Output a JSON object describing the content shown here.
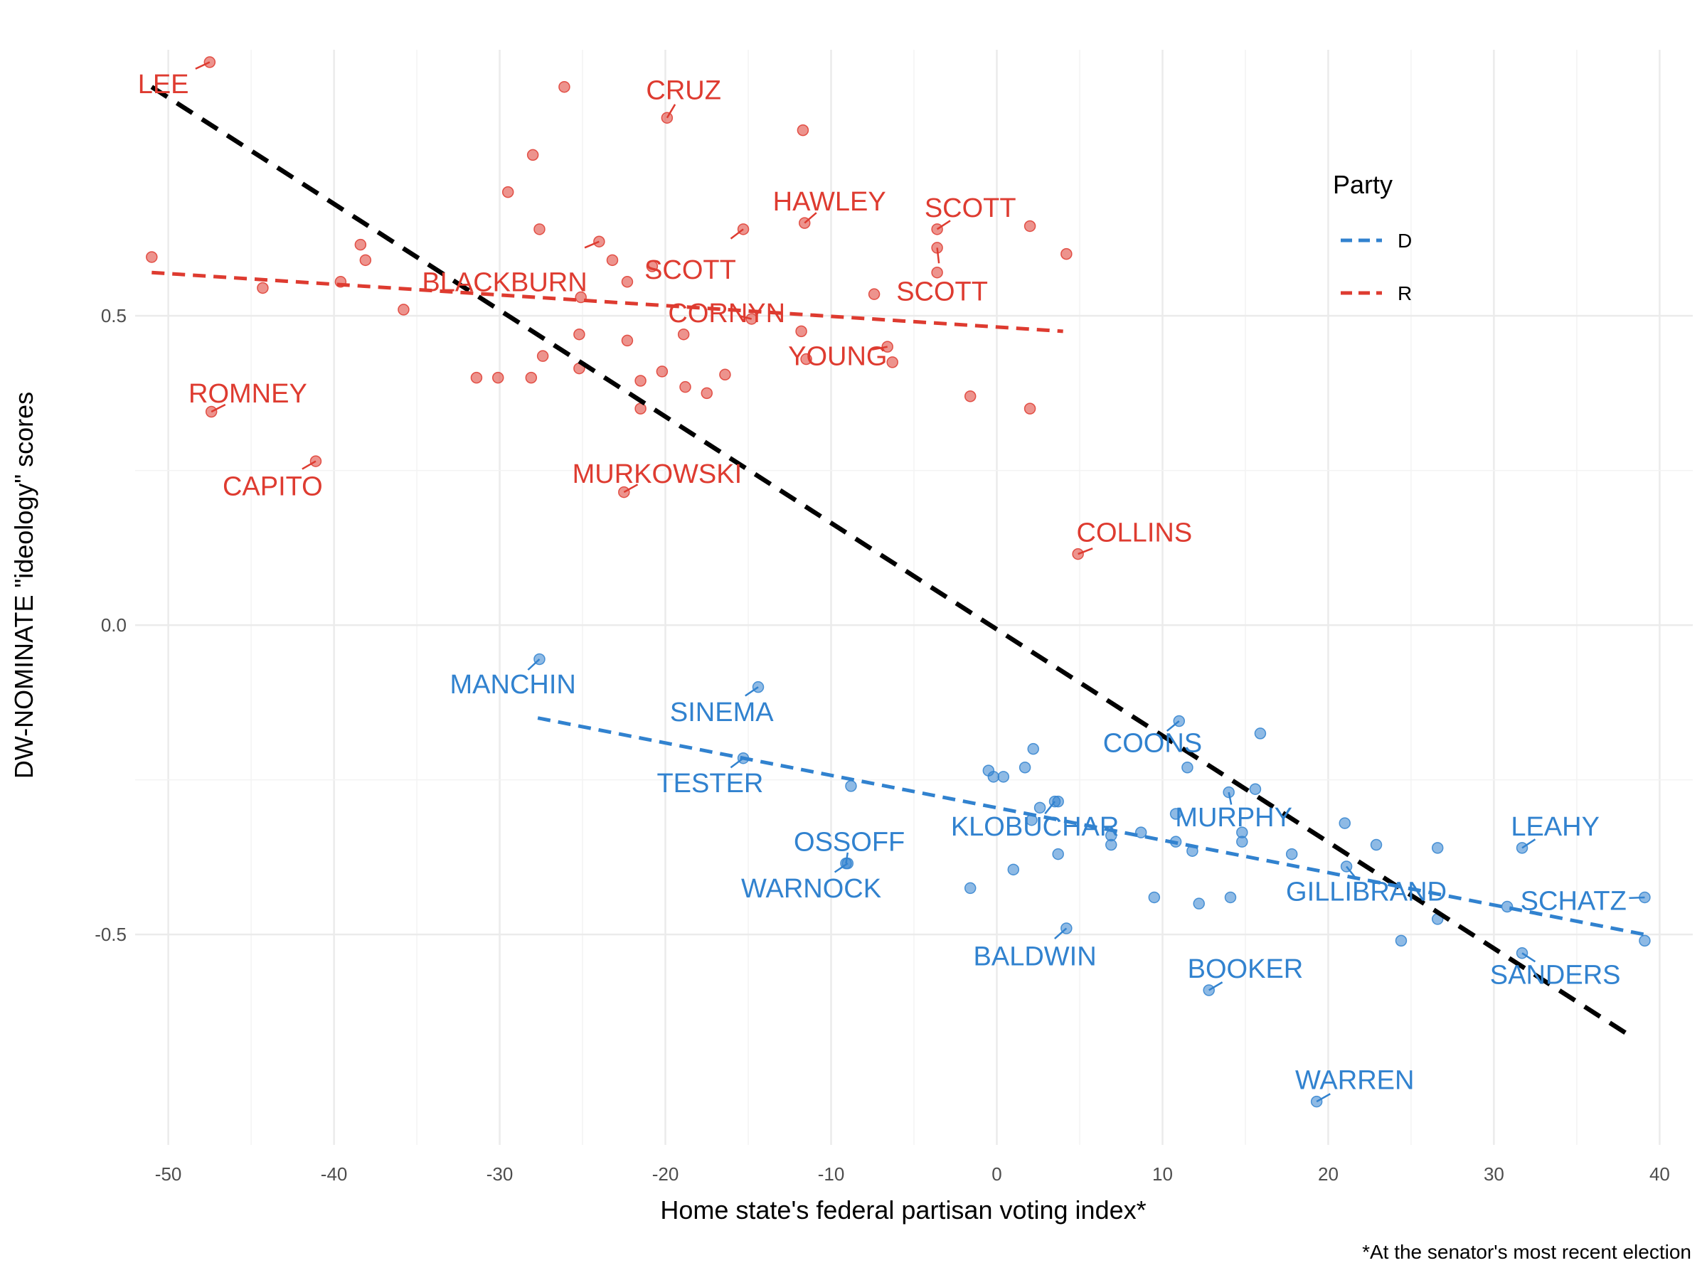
{
  "chart_data": {
    "type": "scatter",
    "xlabel": "Home state's federal partisan voting index*",
    "ylabel": "DW-NOMINATE \"ideology\" scores",
    "caption": "*At the senator's most recent election",
    "xlim": [
      -52,
      42
    ],
    "ylim": [
      -0.84,
      0.93
    ],
    "x_ticks": [
      -50,
      -40,
      -30,
      -20,
      -10,
      0,
      10,
      20,
      30,
      40
    ],
    "y_ticks": [
      -0.5,
      0.0,
      0.5
    ],
    "x_tick_labels": [
      "-50",
      "-40",
      "-30",
      "-20",
      "-10",
      "0",
      "10",
      "20",
      "30",
      "40"
    ],
    "y_tick_labels": [
      "-0.5",
      "0.0",
      "0.5"
    ],
    "grid": true,
    "legend": {
      "title": "Party",
      "placement": "top-right",
      "entries": [
        {
          "key": "D",
          "label": "D",
          "color": "#3182cf"
        },
        {
          "key": "R",
          "label": "R",
          "color": "#de3b30"
        }
      ]
    },
    "colors": {
      "D": "#3182cf",
      "R": "#de3b30",
      "overall": "#000000"
    },
    "fit_lines": [
      {
        "group": "overall",
        "x": [
          -51,
          38
        ],
        "y": [
          0.87,
          -0.66
        ]
      },
      {
        "group": "R",
        "x": [
          -51,
          4
        ],
        "y": [
          0.57,
          0.475
        ]
      },
      {
        "group": "D",
        "x": [
          -27.7,
          39.1
        ],
        "y": [
          -0.15,
          -0.5
        ]
      }
    ],
    "points": {
      "R": [
        {
          "x": -47.5,
          "y": 0.91
        },
        {
          "x": -26.1,
          "y": 0.87
        },
        {
          "x": -19.9,
          "y": 0.82
        },
        {
          "x": -11.7,
          "y": 0.8
        },
        {
          "x": -28.0,
          "y": 0.76
        },
        {
          "x": -29.5,
          "y": 0.7
        },
        {
          "x": -27.6,
          "y": 0.64
        },
        {
          "x": -15.3,
          "y": 0.64
        },
        {
          "x": -11.6,
          "y": 0.65
        },
        {
          "x": -3.6,
          "y": 0.64
        },
        {
          "x": 2.0,
          "y": 0.645
        },
        {
          "x": -38.4,
          "y": 0.615
        },
        {
          "x": -24.0,
          "y": 0.62
        },
        {
          "x": -3.6,
          "y": 0.61
        },
        {
          "x": -51.0,
          "y": 0.595
        },
        {
          "x": -38.1,
          "y": 0.59
        },
        {
          "x": -23.2,
          "y": 0.59
        },
        {
          "x": -20.8,
          "y": 0.58
        },
        {
          "x": 4.2,
          "y": 0.6
        },
        {
          "x": -3.6,
          "y": 0.57
        },
        {
          "x": -39.6,
          "y": 0.555
        },
        {
          "x": -44.3,
          "y": 0.545
        },
        {
          "x": -22.3,
          "y": 0.555
        },
        {
          "x": -7.4,
          "y": 0.535
        },
        {
          "x": -25.1,
          "y": 0.53
        },
        {
          "x": -35.8,
          "y": 0.51
        },
        {
          "x": -14.8,
          "y": 0.495
        },
        {
          "x": -25.2,
          "y": 0.47
        },
        {
          "x": -11.8,
          "y": 0.475
        },
        {
          "x": -18.9,
          "y": 0.47
        },
        {
          "x": -22.3,
          "y": 0.46
        },
        {
          "x": -6.6,
          "y": 0.45
        },
        {
          "x": -27.4,
          "y": 0.435
        },
        {
          "x": -6.3,
          "y": 0.425
        },
        {
          "x": -11.5,
          "y": 0.43
        },
        {
          "x": -25.2,
          "y": 0.415
        },
        {
          "x": -20.2,
          "y": 0.41
        },
        {
          "x": -16.4,
          "y": 0.405
        },
        {
          "x": -31.4,
          "y": 0.4
        },
        {
          "x": -30.1,
          "y": 0.4
        },
        {
          "x": -28.1,
          "y": 0.4
        },
        {
          "x": -21.5,
          "y": 0.395
        },
        {
          "x": -18.8,
          "y": 0.385
        },
        {
          "x": -17.5,
          "y": 0.375
        },
        {
          "x": -1.6,
          "y": 0.37
        },
        {
          "x": -21.5,
          "y": 0.35
        },
        {
          "x": 2.0,
          "y": 0.35
        },
        {
          "x": -47.4,
          "y": 0.345
        },
        {
          "x": -41.1,
          "y": 0.265
        },
        {
          "x": -22.5,
          "y": 0.215
        },
        {
          "x": 4.9,
          "y": 0.115
        }
      ],
      "D": [
        {
          "x": -27.6,
          "y": -0.055
        },
        {
          "x": -14.4,
          "y": -0.1
        },
        {
          "x": 11.0,
          "y": -0.155
        },
        {
          "x": 15.9,
          "y": -0.175
        },
        {
          "x": 2.2,
          "y": -0.2
        },
        {
          "x": -15.3,
          "y": -0.215
        },
        {
          "x": 1.7,
          "y": -0.23
        },
        {
          "x": 11.5,
          "y": -0.23
        },
        {
          "x": -0.5,
          "y": -0.235
        },
        {
          "x": 0.4,
          "y": -0.245
        },
        {
          "x": -0.2,
          "y": -0.245
        },
        {
          "x": -8.8,
          "y": -0.26
        },
        {
          "x": 14.0,
          "y": -0.27
        },
        {
          "x": 15.6,
          "y": -0.265
        },
        {
          "x": 3.5,
          "y": -0.285
        },
        {
          "x": 3.7,
          "y": -0.285
        },
        {
          "x": 2.6,
          "y": -0.295
        },
        {
          "x": 10.8,
          "y": -0.305
        },
        {
          "x": 2.1,
          "y": -0.315
        },
        {
          "x": 21.0,
          "y": -0.32
        },
        {
          "x": 14.8,
          "y": -0.335
        },
        {
          "x": 6.9,
          "y": -0.34
        },
        {
          "x": 8.7,
          "y": -0.335
        },
        {
          "x": 14.8,
          "y": -0.35
        },
        {
          "x": 10.8,
          "y": -0.35
        },
        {
          "x": 22.9,
          "y": -0.355
        },
        {
          "x": 6.9,
          "y": -0.355
        },
        {
          "x": 26.6,
          "y": -0.36
        },
        {
          "x": 31.7,
          "y": -0.36
        },
        {
          "x": 11.8,
          "y": -0.365
        },
        {
          "x": 3.7,
          "y": -0.37
        },
        {
          "x": 17.8,
          "y": -0.37
        },
        {
          "x": -9.1,
          "y": -0.385
        },
        {
          "x": -9.0,
          "y": -0.385
        },
        {
          "x": 21.1,
          "y": -0.39
        },
        {
          "x": 1.0,
          "y": -0.395
        },
        {
          "x": -1.6,
          "y": -0.425
        },
        {
          "x": 9.5,
          "y": -0.44
        },
        {
          "x": 14.1,
          "y": -0.44
        },
        {
          "x": 39.1,
          "y": -0.44
        },
        {
          "x": 12.2,
          "y": -0.45
        },
        {
          "x": 30.8,
          "y": -0.455
        },
        {
          "x": 26.6,
          "y": -0.475
        },
        {
          "x": 4.2,
          "y": -0.49
        },
        {
          "x": 24.4,
          "y": -0.51
        },
        {
          "x": 39.1,
          "y": -0.51
        },
        {
          "x": 31.7,
          "y": -0.53
        },
        {
          "x": 12.8,
          "y": -0.59
        },
        {
          "x": 19.3,
          "y": -0.77
        }
      ]
    },
    "labels": [
      {
        "text": "LEE",
        "party": "R",
        "x": -47.5,
        "y": 0.91,
        "lx": -50.3,
        "ly": 0.875
      },
      {
        "text": "CRUZ",
        "party": "R",
        "x": -19.9,
        "y": 0.82,
        "lx": -18.9,
        "ly": 0.865
      },
      {
        "text": "HAWLEY",
        "party": "R",
        "x": -11.6,
        "y": 0.65,
        "lx": -10.1,
        "ly": 0.685
      },
      {
        "text": "SCOTT",
        "party": "R",
        "x": -3.6,
        "y": 0.64,
        "lx": -1.6,
        "ly": 0.675
      },
      {
        "text": "BLACKBURN",
        "party": "R",
        "x": -24.0,
        "y": 0.62,
        "lx": -29.7,
        "ly": 0.555
      },
      {
        "text": "SCOTT",
        "party": "R",
        "x": -15.3,
        "y": 0.64,
        "lx": -18.5,
        "ly": 0.575
      },
      {
        "text": "SCOTT",
        "party": "R",
        "x": -3.6,
        "y": 0.61,
        "lx": -3.3,
        "ly": 0.54
      },
      {
        "text": "CORNYN",
        "party": "R",
        "x": -14.8,
        "y": 0.495,
        "lx": -16.3,
        "ly": 0.505
      },
      {
        "text": "YOUNG",
        "party": "R",
        "x": -6.6,
        "y": 0.45,
        "lx": -9.6,
        "ly": 0.435
      },
      {
        "text": "ROMNEY",
        "party": "R",
        "x": -47.4,
        "y": 0.345,
        "lx": -45.2,
        "ly": 0.375
      },
      {
        "text": "CAPITO",
        "party": "R",
        "x": -41.1,
        "y": 0.265,
        "lx": -43.7,
        "ly": 0.225
      },
      {
        "text": "MURKOWSKI",
        "party": "R",
        "x": -22.5,
        "y": 0.215,
        "lx": -20.5,
        "ly": 0.245
      },
      {
        "text": "COLLINS",
        "party": "R",
        "x": 4.9,
        "y": 0.115,
        "lx": 8.3,
        "ly": 0.15
      },
      {
        "text": "MANCHIN",
        "party": "R_none",
        "x": -27.6,
        "y": -0.055,
        "lx": -29.2,
        "ly": -0.095
      },
      {
        "text": "SINEMA",
        "party": "D",
        "x": -14.4,
        "y": -0.1,
        "lx": -16.6,
        "ly": -0.14
      },
      {
        "text": "COONS",
        "party": "D",
        "x": 11.0,
        "y": -0.155,
        "lx": 9.4,
        "ly": -0.19
      },
      {
        "text": "TESTER",
        "party": "D",
        "x": -15.3,
        "y": -0.215,
        "lx": -17.3,
        "ly": -0.255
      },
      {
        "text": "MURPHY",
        "party": "D",
        "x": 14.0,
        "y": -0.27,
        "lx": 14.3,
        "ly": -0.31
      },
      {
        "text": "KLOBUCHAR",
        "party": "D",
        "x": 3.5,
        "y": -0.285,
        "lx": 2.3,
        "ly": -0.325
      },
      {
        "text": "LEAHY",
        "party": "D",
        "x": 31.7,
        "y": -0.36,
        "lx": 33.7,
        "ly": -0.325
      },
      {
        "text": "OSSOFF",
        "party": "D",
        "x": -9.1,
        "y": -0.385,
        "lx": -8.9,
        "ly": -0.35
      },
      {
        "text": "WARNOCK",
        "party": "D",
        "x": -9.0,
        "y": -0.385,
        "lx": -11.2,
        "ly": -0.425
      },
      {
        "text": "GILLIBRAND",
        "party": "D",
        "x": 21.1,
        "y": -0.39,
        "lx": 22.3,
        "ly": -0.43
      },
      {
        "text": "SCHATZ",
        "party": "D",
        "x": 39.1,
        "y": -0.44,
        "lx": 34.8,
        "ly": -0.445
      },
      {
        "text": "BALDWIN",
        "party": "D",
        "x": 4.2,
        "y": -0.49,
        "lx": 2.3,
        "ly": -0.535
      },
      {
        "text": "SANDERS",
        "party": "D",
        "x": 31.7,
        "y": -0.53,
        "lx": 33.7,
        "ly": -0.565
      },
      {
        "text": "BOOKER",
        "party": "D",
        "x": 12.8,
        "y": -0.59,
        "lx": 15.0,
        "ly": -0.555
      },
      {
        "text": "WARREN",
        "party": "D",
        "x": 19.3,
        "y": -0.77,
        "lx": 21.6,
        "ly": -0.735
      }
    ]
  }
}
